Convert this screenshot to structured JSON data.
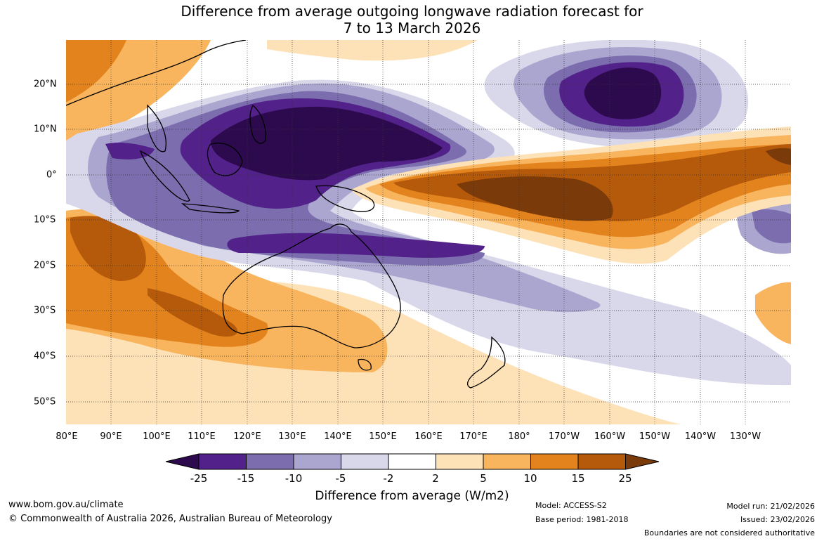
{
  "title": {
    "line1": "Difference from average outgoing longwave radiation forecast for",
    "line2": "7 to 13 March 2026"
  },
  "axes": {
    "lon_labels": [
      "80°E",
      "90°E",
      "100°E",
      "110°E",
      "120°E",
      "130°E",
      "140°E",
      "150°E",
      "160°E",
      "170°E",
      "180°",
      "170°W",
      "160°W",
      "150°W",
      "140°W",
      "130°W"
    ],
    "lat_labels": [
      "20°N",
      "10°N",
      "0°",
      "10°S",
      "20°S",
      "30°S",
      "40°S",
      "50°S"
    ]
  },
  "colorbar": {
    "title": "Difference from average (W/m2)",
    "ticks": [
      "-25",
      "-15",
      "-10",
      "-5",
      "-2",
      "2",
      "5",
      "10",
      "15",
      "25"
    ],
    "colors": {
      "lt_minus25": "#2d0a4e",
      "m25_m15": "#52218a",
      "m15_m10": "#7b6dae",
      "m10_m5": "#aba6cf",
      "m5_m2": "#d9d8ea",
      "m2_2": "#ffffff",
      "p2_p5": "#fde1b7",
      "p5_p10": "#f9b45e",
      "p10_p15": "#e3831d",
      "p15_p25": "#b5590b",
      "gt_25": "#7a3a0a"
    }
  },
  "footer": {
    "website": "www.bom.gov.au/climate",
    "copyright": "© Commonwealth of Australia 2026, Australian Bureau of Meteorology",
    "model": "Model: ACCESS-S2",
    "base_period": "Base period: 1981-2018",
    "model_run": "Model run: 21/02/2026",
    "issued": "Issued: 23/02/2026",
    "disclaimer": "Boundaries are not considered authoritative"
  }
}
